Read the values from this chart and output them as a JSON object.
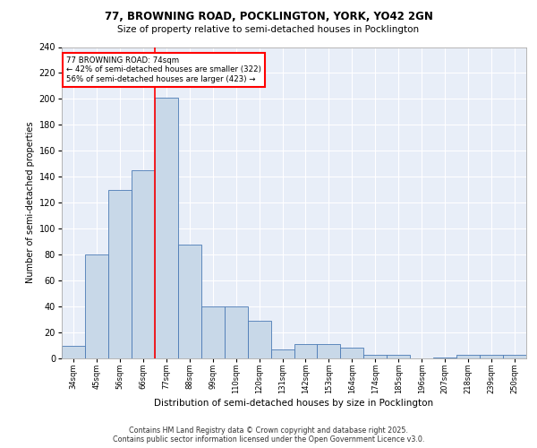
{
  "title1": "77, BROWNING ROAD, POCKLINGTON, YORK, YO42 2GN",
  "title2": "Size of property relative to semi-detached houses in Pocklington",
  "xlabel": "Distribution of semi-detached houses by size in Pocklington",
  "ylabel": "Number of semi-detached properties",
  "bin_labels": [
    "34sqm",
    "45sqm",
    "56sqm",
    "66sqm",
    "77sqm",
    "88sqm",
    "99sqm",
    "110sqm",
    "120sqm",
    "131sqm",
    "142sqm",
    "153sqm",
    "164sqm",
    "174sqm",
    "185sqm",
    "196sqm",
    "207sqm",
    "218sqm",
    "239sqm",
    "250sqm"
  ],
  "bin_values": [
    10,
    80,
    130,
    145,
    201,
    88,
    40,
    40,
    29,
    7,
    11,
    11,
    8,
    3,
    3,
    0,
    1,
    3,
    3,
    3
  ],
  "bar_color": "#c8d8e8",
  "bar_edge_color": "#4a7ab5",
  "bg_color": "#e8eef8",
  "red_line_bin_index": 4,
  "annotation_title": "77 BROWNING ROAD: 74sqm",
  "annotation_line1": "← 42% of semi-detached houses are smaller (322)",
  "annotation_line2": "56% of semi-detached houses are larger (423) →",
  "footer1": "Contains HM Land Registry data © Crown copyright and database right 2025.",
  "footer2": "Contains public sector information licensed under the Open Government Licence v3.0.",
  "ylim": [
    0,
    240
  ],
  "yticks": [
    0,
    20,
    40,
    60,
    80,
    100,
    120,
    140,
    160,
    180,
    200,
    220,
    240
  ]
}
